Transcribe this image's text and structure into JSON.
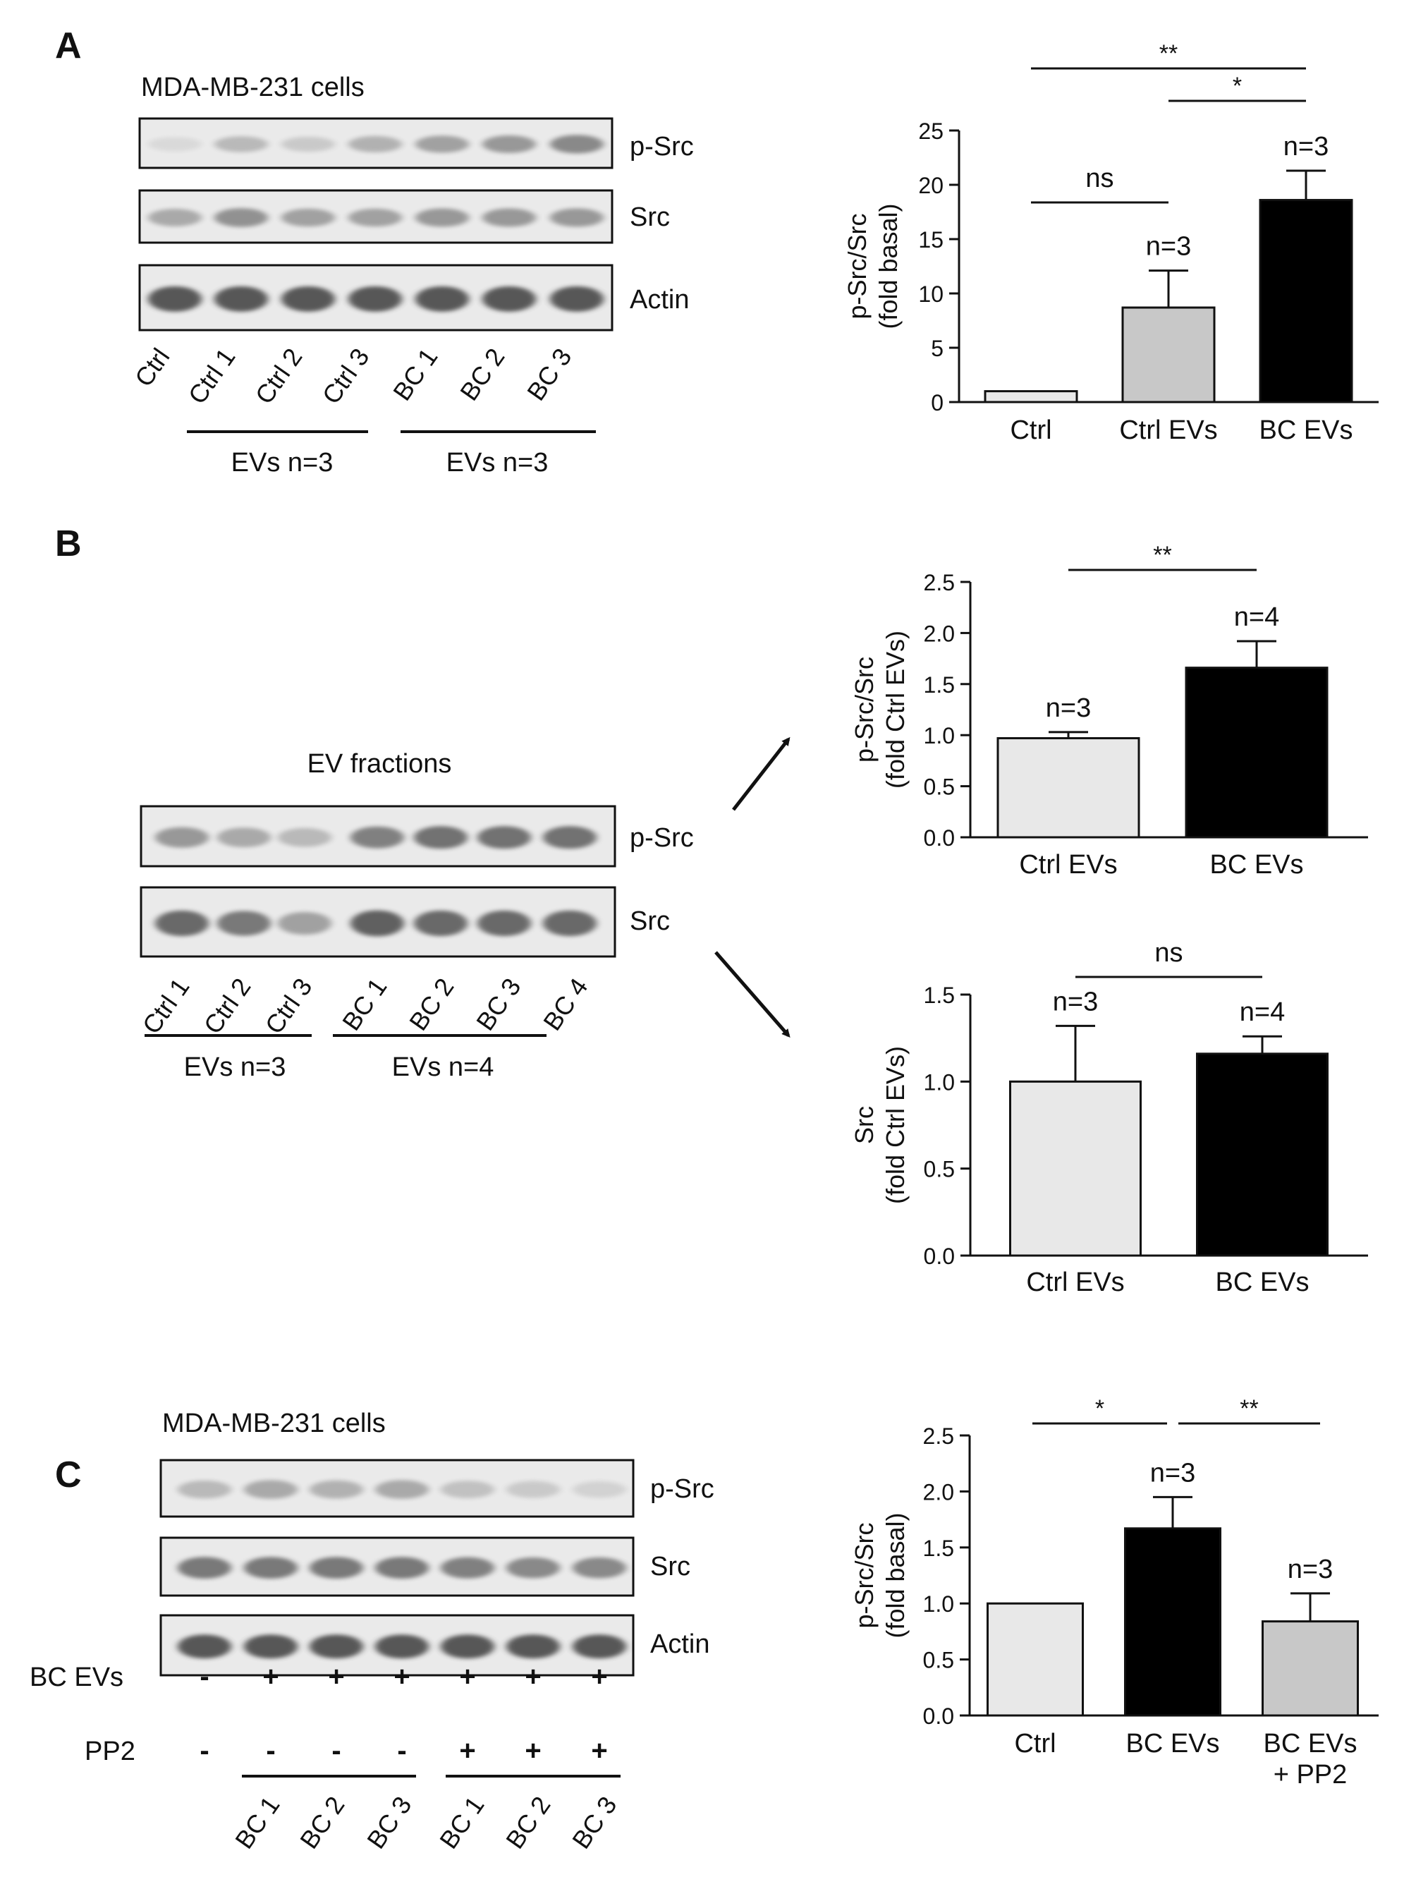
{
  "panels": {
    "A": {
      "letter": "A",
      "blot": {
        "title": "MDA-MB-231 cells",
        "rows": [
          "p-Src",
          "Src",
          "Actin"
        ],
        "lanes": [
          "Ctrl",
          "Ctrl 1",
          "Ctrl 2",
          "Ctrl 3",
          "BC 1",
          "BC 2",
          "BC 3"
        ],
        "groups": [
          "EVs n=3",
          "EVs n=3"
        ],
        "band_intensity": [
          [
            0.05,
            0.25,
            0.15,
            0.3,
            0.4,
            0.45,
            0.55
          ],
          [
            0.35,
            0.5,
            0.4,
            0.4,
            0.45,
            0.45,
            0.45
          ],
          [
            0.85,
            0.85,
            0.85,
            0.85,
            0.85,
            0.85,
            0.85
          ]
        ]
      }
    },
    "B": {
      "letter": "B",
      "blot": {
        "title": "EV fractions",
        "rows": [
          "p-Src",
          "Src"
        ],
        "lanes": [
          "Ctrl 1",
          "Ctrl 2",
          "Ctrl 3",
          "BC 1",
          "BC 2",
          "BC 3",
          "BC 4"
        ],
        "groups": [
          "EVs n=3",
          "EVs n=4"
        ],
        "band_intensity": [
          [
            0.45,
            0.35,
            0.25,
            0.6,
            0.7,
            0.7,
            0.7
          ],
          [
            0.75,
            0.65,
            0.4,
            0.8,
            0.75,
            0.75,
            0.75
          ]
        ]
      }
    },
    "C": {
      "letter": "C",
      "blot": {
        "title": "MDA-MB-231 cells",
        "rows": [
          "p-Src",
          "Src",
          "Actin"
        ],
        "lanes": [
          "",
          "BC 1",
          "BC 2",
          "BC 3",
          "BC 1",
          "BC 2",
          "BC 3"
        ],
        "treatments": [
          {
            "label": "BC EVs",
            "values": [
              "-",
              "+",
              "+",
              "+",
              "+",
              "+",
              "+"
            ]
          },
          {
            "label": "PP2",
            "values": [
              "-",
              "-",
              "-",
              "-",
              "+",
              "+",
              "+"
            ]
          }
        ],
        "band_intensity": [
          [
            0.25,
            0.35,
            0.3,
            0.35,
            0.2,
            0.15,
            0.1
          ],
          [
            0.65,
            0.65,
            0.65,
            0.65,
            0.6,
            0.55,
            0.55
          ],
          [
            0.85,
            0.85,
            0.85,
            0.85,
            0.85,
            0.85,
            0.85
          ]
        ]
      }
    }
  },
  "chart_data": [
    {
      "id": "A",
      "type": "bar",
      "categories": [
        "Ctrl",
        "Ctrl EVs",
        "BC EVs"
      ],
      "values": [
        1.0,
        8.7,
        18.6
      ],
      "errors": [
        0,
        3.4,
        2.7
      ],
      "colors": [
        "#e8e8e8",
        "#c8c8c8",
        "#000000"
      ],
      "ylabel": [
        "p-Src/Src",
        "(fold basal)"
      ],
      "ylim": [
        0,
        25
      ],
      "yticks": [
        "0",
        "5",
        "10",
        "15",
        "20",
        "25"
      ],
      "n_labels": [
        "",
        "n=3",
        "n=3"
      ],
      "brackets": [
        {
          "from": 0,
          "to": 2,
          "label": "**"
        },
        {
          "from": 1,
          "to": 2,
          "label": "*"
        },
        {
          "from": 0,
          "to": 1,
          "label": "ns"
        }
      ]
    },
    {
      "id": "B1",
      "type": "bar",
      "categories": [
        "Ctrl EVs",
        "BC EVs"
      ],
      "values": [
        0.97,
        1.66
      ],
      "errors": [
        0.06,
        0.26
      ],
      "colors": [
        "#e8e8e8",
        "#000000"
      ],
      "ylabel": [
        "p-Src/Src",
        "(fold Ctrl EVs)"
      ],
      "ylim": [
        0,
        2.5
      ],
      "yticks": [
        "0.0",
        "0.5",
        "1.0",
        "1.5",
        "2.0",
        "2.5"
      ],
      "n_labels": [
        "n=3",
        "n=4"
      ],
      "brackets": [
        {
          "from": 0,
          "to": 1,
          "label": "**"
        }
      ]
    },
    {
      "id": "B2",
      "type": "bar",
      "categories": [
        "Ctrl EVs",
        "BC EVs"
      ],
      "values": [
        1.0,
        1.16
      ],
      "errors": [
        0.32,
        0.1
      ],
      "colors": [
        "#e8e8e8",
        "#000000"
      ],
      "ylabel": [
        "Src",
        "(fold Ctrl EVs)"
      ],
      "ylim": [
        0,
        1.5
      ],
      "yticks": [
        "0.0",
        "0.5",
        "1.0",
        "1.5"
      ],
      "n_labels": [
        "n=3",
        "n=4"
      ],
      "brackets": [
        {
          "from": 0,
          "to": 1,
          "label": "ns"
        }
      ]
    },
    {
      "id": "C",
      "type": "bar",
      "categories": [
        [
          "Ctrl"
        ],
        [
          "BC EVs"
        ],
        [
          "BC EVs",
          "+ PP2"
        ]
      ],
      "values": [
        1.0,
        1.67,
        0.84
      ],
      "errors": [
        0,
        0.28,
        0.25
      ],
      "colors": [
        "#e8e8e8",
        "#000000",
        "#c8c8c8"
      ],
      "ylabel": [
        "p-Src/Src",
        "(fold basal)"
      ],
      "ylim": [
        0,
        2.5
      ],
      "yticks": [
        "0.0",
        "0.5",
        "1.0",
        "1.5",
        "2.0",
        "2.5"
      ],
      "n_labels": [
        "",
        "n=3",
        "n=3"
      ],
      "brackets": [
        {
          "from": 0,
          "to": 1,
          "label": "*"
        },
        {
          "from": 1,
          "to": 2,
          "label": "**"
        }
      ]
    }
  ]
}
